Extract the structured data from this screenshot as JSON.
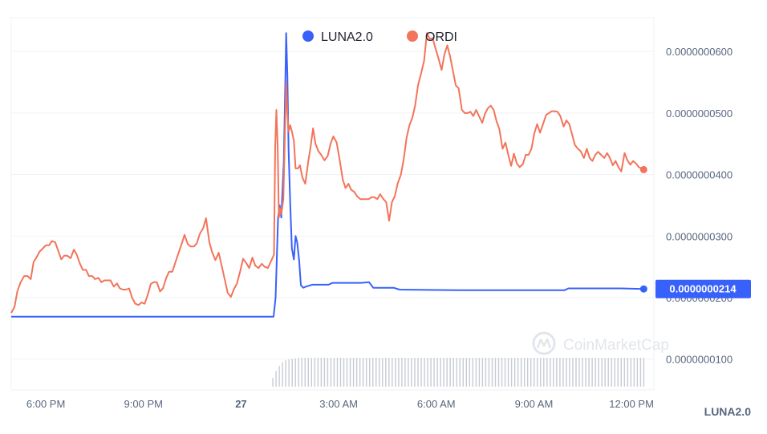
{
  "chart_data": {
    "type": "line",
    "legend": {
      "placement": "top-center"
    },
    "series": [
      {
        "name": "LUNA2.0",
        "color": "#3861fb",
        "points": [
          [
            0,
            1.69e-08
          ],
          [
            25,
            1.69e-08
          ],
          [
            55,
            1.69e-08
          ],
          [
            64.5,
            1.69e-08
          ],
          [
            65,
            2e-08
          ],
          [
            65.6,
            3.3e-08
          ],
          [
            66,
            3.5e-08
          ],
          [
            66.4,
            3.3e-08
          ],
          [
            67,
            4.2e-08
          ],
          [
            67.3,
            5.2e-08
          ],
          [
            67.6,
            6.3e-08
          ],
          [
            67.9,
            5.6e-08
          ],
          [
            68.2,
            4.4e-08
          ],
          [
            68.6,
            3.5e-08
          ],
          [
            69,
            2.8e-08
          ],
          [
            69.5,
            2.62e-08
          ],
          [
            69.9,
            3e-08
          ],
          [
            70.3,
            2.9e-08
          ],
          [
            70.8,
            2.6e-08
          ],
          [
            71.2,
            2.2e-08
          ],
          [
            71.8,
            2.16e-08
          ],
          [
            72.5,
            2.18e-08
          ],
          [
            74,
            2.21e-08
          ],
          [
            78,
            2.21e-08
          ],
          [
            79,
            2.24e-08
          ],
          [
            81,
            2.24e-08
          ],
          [
            86,
            2.24e-08
          ],
          [
            88,
            2.25e-08
          ],
          [
            89,
            2.16e-08
          ],
          [
            94,
            2.16e-08
          ],
          [
            95.5,
            2.13e-08
          ],
          [
            110,
            2.12e-08
          ],
          [
            136,
            2.12e-08
          ],
          [
            137,
            2.15e-08
          ],
          [
            150,
            2.15e-08
          ],
          [
            155.5,
            2.14e-08
          ]
        ]
      },
      {
        "name": "ORDI",
        "color": "#f3745a",
        "points": [
          [
            0,
            1.75e-08
          ],
          [
            0.8,
            1.85e-08
          ],
          [
            1.5,
            2.1e-08
          ],
          [
            2.3,
            2.25e-08
          ],
          [
            3.2,
            2.35e-08
          ],
          [
            4,
            2.35e-08
          ],
          [
            4.8,
            2.3e-08
          ],
          [
            5.5,
            2.58e-08
          ],
          [
            6.2,
            2.65e-08
          ],
          [
            7,
            2.75e-08
          ],
          [
            7.8,
            2.8e-08
          ],
          [
            8.5,
            2.85e-08
          ],
          [
            9.3,
            2.85e-08
          ],
          [
            10,
            2.92e-08
          ],
          [
            10.8,
            2.9e-08
          ],
          [
            11.5,
            2.77e-08
          ],
          [
            12.3,
            2.62e-08
          ],
          [
            13,
            2.68e-08
          ],
          [
            13.8,
            2.68e-08
          ],
          [
            14.6,
            2.64e-08
          ],
          [
            15.4,
            2.78e-08
          ],
          [
            16.1,
            2.7e-08
          ],
          [
            16.9,
            2.55e-08
          ],
          [
            17.6,
            2.45e-08
          ],
          [
            18.4,
            2.45e-08
          ],
          [
            19.1,
            2.35e-08
          ],
          [
            19.9,
            2.35e-08
          ],
          [
            20.6,
            2.3e-08
          ],
          [
            21.4,
            2.32e-08
          ],
          [
            22.2,
            2.25e-08
          ],
          [
            22.9,
            2.28e-08
          ],
          [
            23.7,
            2.28e-08
          ],
          [
            24.4,
            2.28e-08
          ],
          [
            25.2,
            2.18e-08
          ],
          [
            26,
            2.23e-08
          ],
          [
            26.7,
            2.15e-08
          ],
          [
            27.5,
            2.13e-08
          ],
          [
            28.2,
            2.13e-08
          ],
          [
            29,
            2.15e-08
          ],
          [
            29.7,
            2e-08
          ],
          [
            30.5,
            1.9e-08
          ],
          [
            31.3,
            1.88e-08
          ],
          [
            32,
            1.92e-08
          ],
          [
            32.8,
            1.9e-08
          ],
          [
            33.5,
            2.03e-08
          ],
          [
            34.3,
            2.22e-08
          ],
          [
            35,
            2.25e-08
          ],
          [
            35.8,
            2.25e-08
          ],
          [
            36.6,
            2.1e-08
          ],
          [
            37.3,
            2.15e-08
          ],
          [
            38.1,
            2.32e-08
          ],
          [
            38.8,
            2.42e-08
          ],
          [
            39.6,
            2.42e-08
          ],
          [
            40.3,
            2.56e-08
          ],
          [
            41.1,
            2.72e-08
          ],
          [
            41.9,
            2.87e-08
          ],
          [
            42.6,
            3.02e-08
          ],
          [
            43.4,
            2.87e-08
          ],
          [
            44.1,
            2.83e-08
          ],
          [
            44.9,
            2.83e-08
          ],
          [
            45.6,
            2.88e-08
          ],
          [
            46.4,
            3.04e-08
          ],
          [
            47.2,
            3.13e-08
          ],
          [
            47.9,
            3.29e-08
          ],
          [
            48.7,
            2.9e-08
          ],
          [
            49.4,
            2.74e-08
          ],
          [
            50.2,
            2.61e-08
          ],
          [
            51,
            2.73e-08
          ],
          [
            51.7,
            2.53e-08
          ],
          [
            52.5,
            2.29e-08
          ],
          [
            53.2,
            2.08e-08
          ],
          [
            54,
            2.01e-08
          ],
          [
            54.7,
            2.13e-08
          ],
          [
            55.5,
            2.23e-08
          ],
          [
            56.3,
            2.43e-08
          ],
          [
            57,
            2.63e-08
          ],
          [
            57.8,
            2.56e-08
          ],
          [
            58.5,
            2.48e-08
          ],
          [
            59.3,
            2.65e-08
          ],
          [
            60,
            2.52e-08
          ],
          [
            60.8,
            2.48e-08
          ],
          [
            61.6,
            2.55e-08
          ],
          [
            62.3,
            2.5e-08
          ],
          [
            63.1,
            2.48e-08
          ],
          [
            63.8,
            2.58e-08
          ],
          [
            64.6,
            2.7e-08
          ],
          [
            64.9,
            4.45e-08
          ],
          [
            65.2,
            5.05e-08
          ],
          [
            65.5,
            4.45e-08
          ],
          [
            65.8,
            3.3e-08
          ],
          [
            66.1,
            3.45e-08
          ],
          [
            66.4,
            3.35e-08
          ],
          [
            66.9,
            3.6e-08
          ],
          [
            67.3,
            4.7e-08
          ],
          [
            67.6,
            5.5e-08
          ],
          [
            67.9,
            5e-08
          ],
          [
            68.2,
            4.7e-08
          ],
          [
            68.6,
            4.8e-08
          ],
          [
            69,
            4.7e-08
          ],
          [
            69.5,
            4.55e-08
          ],
          [
            69.9,
            4.1e-08
          ],
          [
            70.5,
            4.1e-08
          ],
          [
            71,
            4.15e-08
          ],
          [
            71.6,
            3.95e-08
          ],
          [
            72.3,
            3.85e-08
          ],
          [
            73,
            4.2e-08
          ],
          [
            73.6,
            4.45e-08
          ],
          [
            74.2,
            4.75e-08
          ],
          [
            74.8,
            4.5e-08
          ],
          [
            75.5,
            4.38e-08
          ],
          [
            76.2,
            4.32e-08
          ],
          [
            77,
            4.23e-08
          ],
          [
            77.8,
            4.3e-08
          ],
          [
            78.5,
            4.5e-08
          ],
          [
            79.2,
            4.62e-08
          ],
          [
            80,
            4.52e-08
          ],
          [
            80.8,
            4.22e-08
          ],
          [
            81.5,
            3.92e-08
          ],
          [
            82.2,
            3.78e-08
          ],
          [
            82.9,
            3.85e-08
          ],
          [
            83.6,
            3.75e-08
          ],
          [
            84.3,
            3.72e-08
          ],
          [
            85,
            3.65e-08
          ],
          [
            85.8,
            3.6e-08
          ],
          [
            86.5,
            3.6e-08
          ],
          [
            87.2,
            3.6e-08
          ],
          [
            87.9,
            3.6e-08
          ],
          [
            88.6,
            3.63e-08
          ],
          [
            89.3,
            3.63e-08
          ],
          [
            90,
            3.6e-08
          ],
          [
            90.7,
            3.68e-08
          ],
          [
            91.5,
            3.6e-08
          ],
          [
            92.2,
            3.55e-08
          ],
          [
            92.9,
            3.25e-08
          ],
          [
            93.6,
            3.55e-08
          ],
          [
            94.3,
            3.65e-08
          ],
          [
            95,
            3.85e-08
          ],
          [
            95.8,
            4e-08
          ],
          [
            96.5,
            4.25e-08
          ],
          [
            97.2,
            4.6e-08
          ],
          [
            97.9,
            4.8e-08
          ],
          [
            98.6,
            4.92e-08
          ],
          [
            99.3,
            5.12e-08
          ],
          [
            100,
            5.45e-08
          ],
          [
            100.8,
            5.65e-08
          ],
          [
            101.5,
            5.85e-08
          ],
          [
            102.2,
            6.3e-08
          ],
          [
            102.9,
            6.2e-08
          ],
          [
            103.6,
            6.22e-08
          ],
          [
            104.3,
            6.05e-08
          ],
          [
            105,
            5.9e-08
          ],
          [
            105.8,
            5.7e-08
          ],
          [
            106.5,
            5.95e-08
          ],
          [
            107.2,
            6.1e-08
          ],
          [
            107.9,
            5.92e-08
          ],
          [
            108.6,
            5.68e-08
          ],
          [
            109.3,
            5.45e-08
          ],
          [
            110,
            5.4e-08
          ],
          [
            110.8,
            5.05e-08
          ],
          [
            111.5,
            5e-08
          ],
          [
            112.2,
            5e-08
          ],
          [
            112.9,
            5.02e-08
          ],
          [
            113.6,
            4.95e-08
          ],
          [
            114.3,
            5.05e-08
          ],
          [
            115,
            4.95e-08
          ],
          [
            115.8,
            4.84e-08
          ],
          [
            116.5,
            4.99e-08
          ],
          [
            117.2,
            5.08e-08
          ],
          [
            117.9,
            5.12e-08
          ],
          [
            118.6,
            5.05e-08
          ],
          [
            119.3,
            4.87e-08
          ],
          [
            120,
            4.74e-08
          ],
          [
            120.8,
            4.42e-08
          ],
          [
            121.5,
            4.52e-08
          ],
          [
            122.2,
            4.32e-08
          ],
          [
            122.9,
            4.14e-08
          ],
          [
            123.6,
            4.34e-08
          ],
          [
            124.3,
            4.18e-08
          ],
          [
            125,
            4.12e-08
          ],
          [
            125.8,
            4.17e-08
          ],
          [
            126.5,
            4.32e-08
          ],
          [
            127.2,
            4.32e-08
          ],
          [
            127.9,
            4.42e-08
          ],
          [
            128.6,
            4.67e-08
          ],
          [
            129.3,
            4.82e-08
          ],
          [
            130,
            4.68e-08
          ],
          [
            130.8,
            4.83e-08
          ],
          [
            131.5,
            4.97e-08
          ],
          [
            132.2,
            5e-08
          ],
          [
            132.9,
            5.03e-08
          ],
          [
            133.6,
            5.03e-08
          ],
          [
            134.3,
            5.02e-08
          ],
          [
            135,
            4.95e-08
          ],
          [
            135.8,
            4.78e-08
          ],
          [
            136.5,
            4.88e-08
          ],
          [
            137.2,
            4.82e-08
          ],
          [
            137.9,
            4.65e-08
          ],
          [
            138.6,
            4.48e-08
          ],
          [
            139.3,
            4.42e-08
          ],
          [
            140,
            4.38e-08
          ],
          [
            140.8,
            4.27e-08
          ],
          [
            141.5,
            4.42e-08
          ],
          [
            142.2,
            4.27e-08
          ],
          [
            142.9,
            4.22e-08
          ],
          [
            143.6,
            4.32e-08
          ],
          [
            144.3,
            4.37e-08
          ],
          [
            145,
            4.32e-08
          ],
          [
            145.8,
            4.27e-08
          ],
          [
            146.5,
            4.35e-08
          ],
          [
            147.2,
            4.27e-08
          ],
          [
            147.9,
            4.15e-08
          ],
          [
            148.6,
            4.22e-08
          ],
          [
            149.3,
            4.12e-08
          ],
          [
            150,
            4.05e-08
          ],
          [
            150.8,
            4.35e-08
          ],
          [
            151.5,
            4.23e-08
          ],
          [
            152.2,
            4.16e-08
          ],
          [
            152.9,
            4.22e-08
          ],
          [
            153.6,
            4.18e-08
          ],
          [
            154.3,
            4.12e-08
          ],
          [
            155,
            4.1e-08
          ],
          [
            155.5,
            4.08e-08
          ]
        ]
      }
    ],
    "volume_bars": {
      "color": "#c7cbd3",
      "x_start": 64.3,
      "x_end": 155.5,
      "count": 116,
      "ramp_fraction": 0.1,
      "relative_heights": [
        0.3,
        0.55,
        0.72,
        0.85,
        0.92,
        0.95,
        0.97,
        0.98,
        1.0
      ]
    },
    "x_axis": {
      "unit": "hours since 4:00 PM on the 26th",
      "range": [
        0,
        158
      ],
      "ticks": [
        {
          "value": 8.5,
          "label": "6:00 PM"
        },
        {
          "value": 32.5,
          "label": "9:00 PM"
        },
        {
          "value": 56.5,
          "label": "27"
        },
        {
          "value": 80.5,
          "label": "3:00 AM"
        },
        {
          "value": 104.5,
          "label": "6:00 AM"
        },
        {
          "value": 128.5,
          "label": "9:00 AM"
        },
        {
          "value": 152.5,
          "label": "12:00 PM"
        }
      ]
    },
    "y_axis": {
      "range": [
        5e-09,
        6.55e-08
      ],
      "ticks": [
        {
          "value": 6e-08,
          "label": "0.0000000600"
        },
        {
          "value": 5e-08,
          "label": "0.0000000500"
        },
        {
          "value": 4e-08,
          "label": "0.0000000400"
        },
        {
          "value": 3e-08,
          "label": "0.0000000300"
        },
        {
          "value": 2e-08,
          "label": "0.0000000200"
        },
        {
          "value": 1e-08,
          "label": "0.0000000100"
        }
      ],
      "grid": true
    },
    "current_price": {
      "value": 2.14e-08,
      "label": "0.0000000214",
      "color": "#3861fb"
    }
  },
  "legend_items": [
    {
      "label": "LUNA2.0",
      "color": "#3861fb"
    },
    {
      "label": "ORDI",
      "color": "#f3745a"
    }
  ],
  "watermark": {
    "text": "CoinMarketCap",
    "icon": "coinmarketcap-logo-icon"
  },
  "footer_label": "LUNA2.0"
}
